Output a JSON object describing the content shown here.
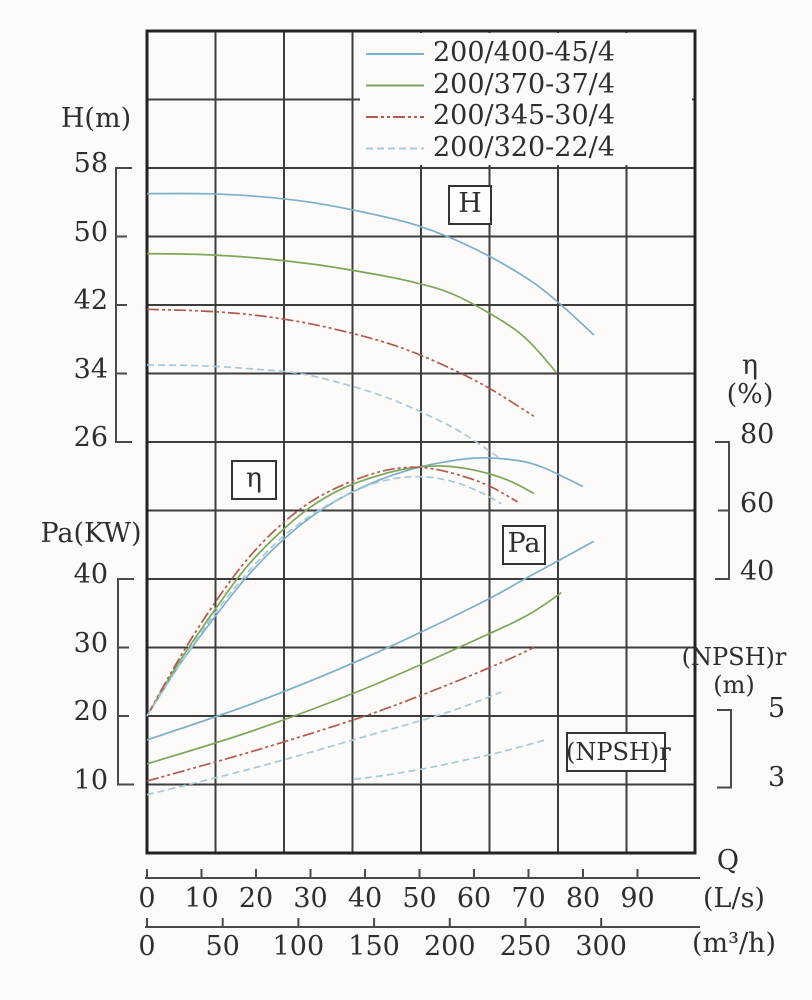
{
  "labels": {
    "h_axis": "H(m)",
    "pa_axis": "Pa(KW)",
    "eta_axis": "η",
    "eta_unit": "(%)",
    "npsh_axis": "(NPSH)r",
    "npsh_unit": "(m)",
    "q_label": "Q",
    "q_unit_ls": "(L/s)",
    "q_unit_m3h": "(m³/h)",
    "box_h": "H",
    "box_eta": "η",
    "box_pa": "Pa",
    "box_npsh": "(NPSH)r"
  },
  "legend": [
    {
      "label": "200/400-45/4",
      "color": "#7eafc8",
      "dash": ""
    },
    {
      "label": "200/370-37/4",
      "color": "#7ca75a",
      "dash": ""
    },
    {
      "label": "200/345-30/4",
      "color": "#b25a4e",
      "dash": "12 3 3 3 3 3"
    },
    {
      "label": "200/320-22/4",
      "color": "#a6c9d8",
      "dash": "7 4"
    }
  ],
  "colors": {
    "grid": "#3d3d3d",
    "border": "#232323",
    "axis": "#4a4a4a",
    "text": "#2e2e2e",
    "background": "#fcfbf9"
  },
  "chart_data": {
    "type": "line",
    "title": "Pump performance curves: H, η, Pa, (NPSH)r versus flow Q",
    "grid": true,
    "legend_position": "top-right",
    "x": {
      "label": "Q",
      "primary_unit": "L/s",
      "primary_ticks": [
        0,
        10,
        20,
        30,
        40,
        50,
        60,
        70,
        80,
        90
      ],
      "secondary_unit": "m³/h",
      "secondary_ticks": [
        0,
        50,
        100,
        150,
        200,
        250,
        300
      ],
      "range_ls": [
        0,
        100
      ]
    },
    "panels": [
      {
        "id": "H",
        "ylabel": "H(m)",
        "yticks": [
          58,
          50,
          42,
          34,
          26
        ],
        "series": [
          {
            "model": "200/400-45/4",
            "color": "#7eafc8",
            "dash": "",
            "points": [
              [
                0,
                55
              ],
              [
                10,
                55
              ],
              [
                20,
                54.7
              ],
              [
                30,
                54
              ],
              [
                40,
                52.8
              ],
              [
                50,
                51.2
              ],
              [
                60,
                48.6
              ],
              [
                70,
                45
              ],
              [
                76,
                42
              ],
              [
                82,
                38.5
              ]
            ]
          },
          {
            "model": "200/370-37/4",
            "color": "#7ca75a",
            "dash": "",
            "points": [
              [
                0,
                48
              ],
              [
                10,
                47.9
              ],
              [
                20,
                47.5
              ],
              [
                30,
                46.8
              ],
              [
                40,
                45.8
              ],
              [
                48,
                44.8
              ],
              [
                56,
                43.3
              ],
              [
                65,
                40.2
              ],
              [
                70,
                37.8
              ],
              [
                75,
                34.2
              ]
            ]
          },
          {
            "model": "200/345-30/4",
            "color": "#b25a4e",
            "dash": "12 3 3 3 3 3",
            "points": [
              [
                0,
                41.5
              ],
              [
                10,
                41.3
              ],
              [
                20,
                40.8
              ],
              [
                30,
                39.8
              ],
              [
                40,
                38.3
              ],
              [
                48,
                36.7
              ],
              [
                56,
                34.5
              ],
              [
                63,
                32.2
              ],
              [
                71,
                29
              ]
            ]
          },
          {
            "model": "200/320-22/4",
            "color": "#a6c9d8",
            "dash": "7 4",
            "points": [
              [
                0,
                35
              ],
              [
                10,
                34.9
              ],
              [
                20,
                34.5
              ],
              [
                28,
                34
              ],
              [
                36,
                32.8
              ],
              [
                44,
                31.2
              ],
              [
                52,
                29
              ],
              [
                58,
                27
              ],
              [
                65,
                24
              ]
            ]
          }
        ]
      },
      {
        "id": "eta",
        "ylabel": "η(%)",
        "yticks": [
          80,
          60,
          40
        ],
        "series": [
          {
            "model": "200/400-45/4",
            "color": "#7eafc8",
            "dash": "",
            "points": [
              [
                0,
                0
              ],
              [
                6,
                15
              ],
              [
                12,
                28
              ],
              [
                18,
                40
              ],
              [
                24,
                50
              ],
              [
                30,
                58
              ],
              [
                36,
                64
              ],
              [
                42,
                68.5
              ],
              [
                48,
                71.8
              ],
              [
                54,
                74
              ],
              [
                60,
                75.3
              ],
              [
                66,
                75
              ],
              [
                72,
                73
              ],
              [
                80,
                67
              ]
            ]
          },
          {
            "model": "200/370-37/4",
            "color": "#7ca75a",
            "dash": "",
            "points": [
              [
                0,
                0
              ],
              [
                6,
                16
              ],
              [
                12,
                30
              ],
              [
                18,
                43
              ],
              [
                24,
                53
              ],
              [
                30,
                61
              ],
              [
                36,
                66.5
              ],
              [
                42,
                70
              ],
              [
                48,
                72.3
              ],
              [
                54,
                73
              ],
              [
                60,
                71.8
              ],
              [
                66,
                69
              ],
              [
                71,
                65
              ]
            ]
          },
          {
            "model": "200/345-30/4",
            "color": "#b25a4e",
            "dash": "12 3 3 3 3 3",
            "points": [
              [
                0,
                0
              ],
              [
                6,
                17
              ],
              [
                12,
                32
              ],
              [
                18,
                45
              ],
              [
                24,
                55
              ],
              [
                30,
                62.5
              ],
              [
                36,
                67.5
              ],
              [
                42,
                71
              ],
              [
                47,
                72.5
              ],
              [
                52,
                72.3
              ],
              [
                58,
                70
              ],
              [
                63,
                67
              ],
              [
                68,
                62.5
              ]
            ]
          },
          {
            "model": "200/320-22/4",
            "color": "#a6c9d8",
            "dash": "7 4",
            "points": [
              [
                0,
                0
              ],
              [
                6,
                15
              ],
              [
                12,
                29
              ],
              [
                18,
                41
              ],
              [
                24,
                51
              ],
              [
                30,
                58.5
              ],
              [
                36,
                64
              ],
              [
                41,
                67.5
              ],
              [
                46,
                69.5
              ],
              [
                51,
                69.8
              ],
              [
                56,
                68.5
              ],
              [
                61,
                65.5
              ],
              [
                65,
                62
              ]
            ]
          }
        ]
      },
      {
        "id": "Pa",
        "ylabel": "Pa(KW)",
        "yticks": [
          40,
          30,
          20,
          10
        ],
        "series": [
          {
            "model": "200/400-45/4",
            "color": "#7eafc8",
            "dash": "",
            "points": [
              [
                0,
                16.5
              ],
              [
                20,
                22
              ],
              [
                40,
                28.5
              ],
              [
                60,
                36
              ],
              [
                70,
                40.3
              ],
              [
                82,
                45.5
              ]
            ]
          },
          {
            "model": "200/370-37/4",
            "color": "#7ca75a",
            "dash": "",
            "points": [
              [
                0,
                13
              ],
              [
                20,
                18
              ],
              [
                40,
                24
              ],
              [
                60,
                31
              ],
              [
                70,
                34.8
              ],
              [
                76,
                38
              ]
            ]
          },
          {
            "model": "200/345-30/4",
            "color": "#b25a4e",
            "dash": "12 3 3 3 3 3",
            "points": [
              [
                0,
                10.5
              ],
              [
                20,
                15
              ],
              [
                40,
                20
              ],
              [
                55,
                24.5
              ],
              [
                65,
                27.8
              ],
              [
                71,
                30
              ]
            ]
          },
          {
            "model": "200/320-22/4",
            "color": "#a6c9d8",
            "dash": "7 4",
            "points": [
              [
                0,
                8.5
              ],
              [
                20,
                12.5
              ],
              [
                40,
                17
              ],
              [
                55,
                20.5
              ],
              [
                65,
                23.5
              ]
            ]
          }
        ]
      },
      {
        "id": "NPSH",
        "ylabel": "(NPSH)r(m)",
        "yticks": [
          5,
          3
        ],
        "series": [
          {
            "model": "(NPSH)r curve",
            "color": "#a6c9d8",
            "dash": "7 4",
            "points": [
              [
                38,
                3.15
              ],
              [
                45,
                3.3
              ],
              [
                52,
                3.5
              ],
              [
                58,
                3.7
              ],
              [
                65,
                3.95
              ],
              [
                73,
                4.3
              ]
            ]
          }
        ]
      }
    ]
  }
}
